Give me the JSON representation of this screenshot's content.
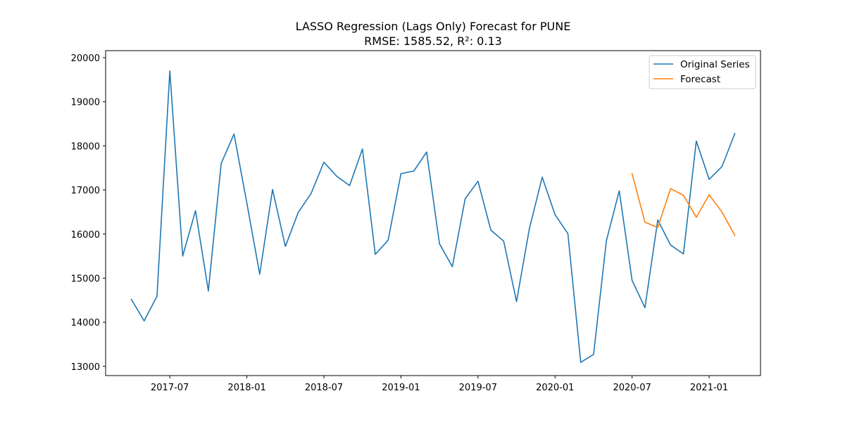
{
  "chart_data": {
    "type": "line",
    "title": "LASSO Regression (Lags Only) Forecast for PUNE",
    "subtitle": "RMSE: 1585.52, R²: 0.13",
    "xlabel": "",
    "ylabel": "",
    "x_tick_labels": [
      "2017-07",
      "2018-01",
      "2018-07",
      "2019-01",
      "2019-07",
      "2020-01",
      "2020-07",
      "2021-01"
    ],
    "y_tick_labels": [
      "13000",
      "14000",
      "15000",
      "16000",
      "17000",
      "18000",
      "19000",
      "20000"
    ],
    "ylim": [
      12790,
      20160
    ],
    "xlim": [
      "2017-02",
      "2021-05"
    ],
    "grid": false,
    "legend_position": "upper right",
    "series": [
      {
        "name": "Original Series",
        "color": "#1f77b4",
        "x": [
          "2017-04",
          "2017-05",
          "2017-06",
          "2017-07",
          "2017-08",
          "2017-09",
          "2017-10",
          "2017-11",
          "2017-12",
          "2018-01",
          "2018-02",
          "2018-03",
          "2018-04",
          "2018-05",
          "2018-06",
          "2018-07",
          "2018-08",
          "2018-09",
          "2018-10",
          "2018-11",
          "2018-12",
          "2019-01",
          "2019-02",
          "2019-03",
          "2019-04",
          "2019-05",
          "2019-06",
          "2019-07",
          "2019-08",
          "2019-09",
          "2019-10",
          "2019-11",
          "2019-12",
          "2020-01",
          "2020-02",
          "2020-03",
          "2020-04",
          "2020-05",
          "2020-06",
          "2020-07",
          "2020-08",
          "2020-09",
          "2020-10",
          "2020-11",
          "2020-12",
          "2021-01",
          "2021-02",
          "2021-03"
        ],
        "values": [
          14520,
          14030,
          14590,
          19700,
          15500,
          16530,
          14710,
          17600,
          18270,
          16700,
          15090,
          17010,
          15720,
          16490,
          16920,
          17630,
          17310,
          17100,
          17930,
          15540,
          15860,
          17370,
          17430,
          17860,
          15780,
          15260,
          16800,
          17200,
          16090,
          15840,
          14470,
          16120,
          17290,
          16440,
          16010,
          13090,
          13270,
          15850,
          16980,
          14950,
          14330,
          16320,
          15750,
          15550,
          18110,
          17240,
          17530,
          18280
        ]
      },
      {
        "name": "Forecast",
        "color": "#ff7f0e",
        "x": [
          "2020-07",
          "2020-08",
          "2020-09",
          "2020-10",
          "2020-11",
          "2020-12",
          "2021-01",
          "2021-02",
          "2021-03"
        ],
        "values": [
          17370,
          16270,
          16150,
          17030,
          16880,
          16380,
          16890,
          16500,
          15970
        ]
      }
    ]
  }
}
